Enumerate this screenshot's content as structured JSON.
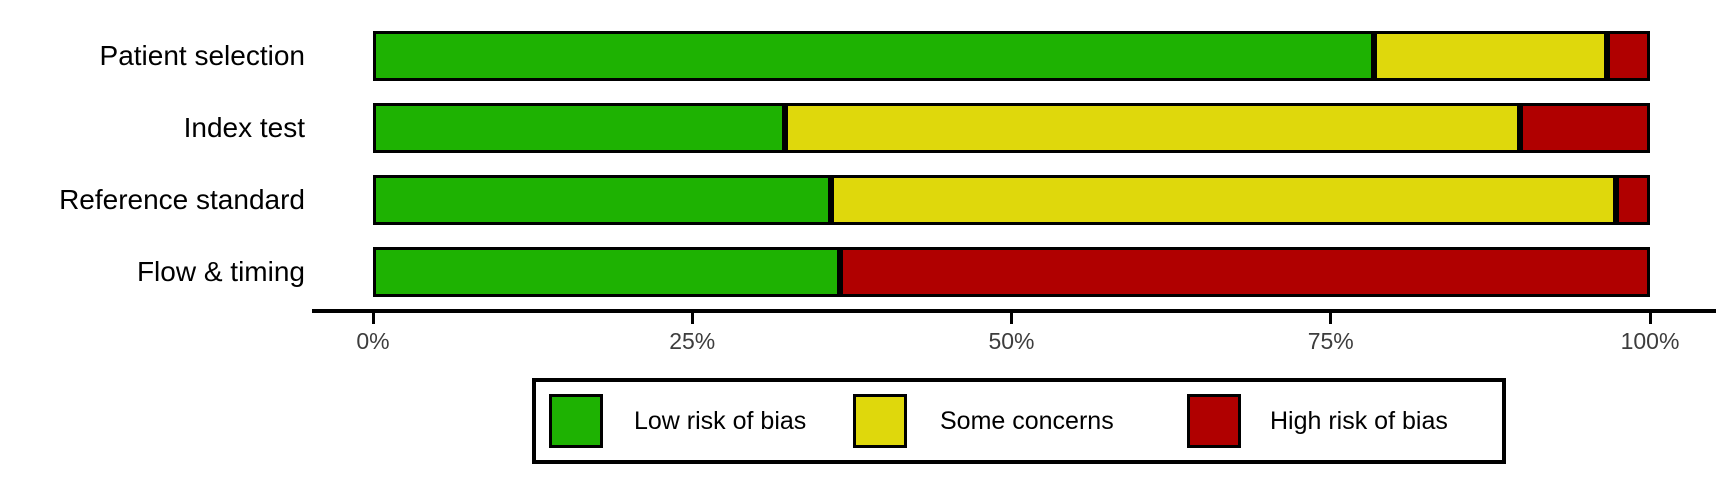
{
  "chart_data": {
    "type": "bar",
    "variant": "horizontal-stacked-percent",
    "title": "",
    "xlabel": "",
    "ylabel": "",
    "categories": [
      "Patient selection",
      "Index test",
      "Reference standard",
      "Flow & timing"
    ],
    "series": [
      {
        "name": "Low risk of bias",
        "color": "#1eb202",
        "values": [
          78.4,
          32.3,
          35.9,
          36.6
        ]
      },
      {
        "name": "Some concerns",
        "color": "#dfd80c",
        "values": [
          18.2,
          57.5,
          61.4,
          0.0
        ]
      },
      {
        "name": "High risk of bias",
        "color": "#b00000",
        "values": [
          3.4,
          10.2,
          2.7,
          63.4
        ]
      }
    ],
    "xlim": [
      0,
      100
    ],
    "x_tick_values": [
      0,
      25,
      50,
      75,
      100
    ],
    "x_tick_labels": [
      "0%",
      "25%",
      "50%",
      "75%",
      "100%"
    ],
    "grid": false,
    "legend_position": "bottom",
    "bar_border_color": "#000000",
    "axis_color": "#000000"
  },
  "legend": {
    "items": [
      {
        "label": "Low risk of bias",
        "color": "#1eb202"
      },
      {
        "label": "Some concerns",
        "color": "#dfd80c"
      },
      {
        "label": "High risk of bias",
        "color": "#b00000"
      }
    ]
  }
}
